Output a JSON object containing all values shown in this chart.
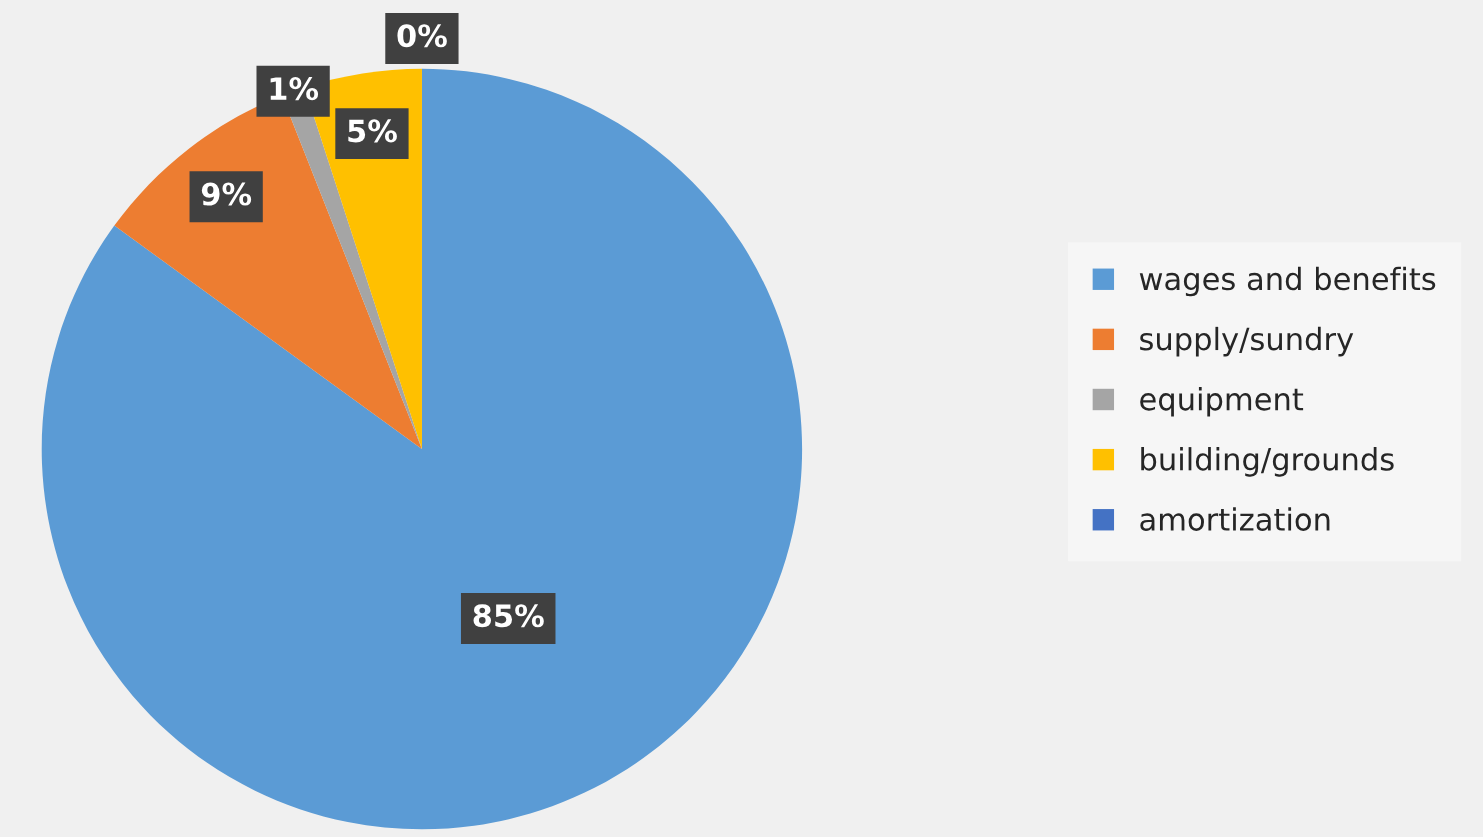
{
  "chart_data": {
    "type": "pie",
    "categories": [
      "wages and benefits",
      "supply/sundry",
      "equipment",
      "building/grounds",
      "amortization"
    ],
    "values": [
      85,
      9,
      1,
      5,
      0
    ],
    "colors": [
      "#5b9bd5",
      "#ed7d31",
      "#a5a5a5",
      "#ffc000",
      "#4472c4"
    ],
    "value_labels": [
      "85%",
      "9%",
      "1%",
      "5%",
      "0%"
    ],
    "legend": "right"
  }
}
